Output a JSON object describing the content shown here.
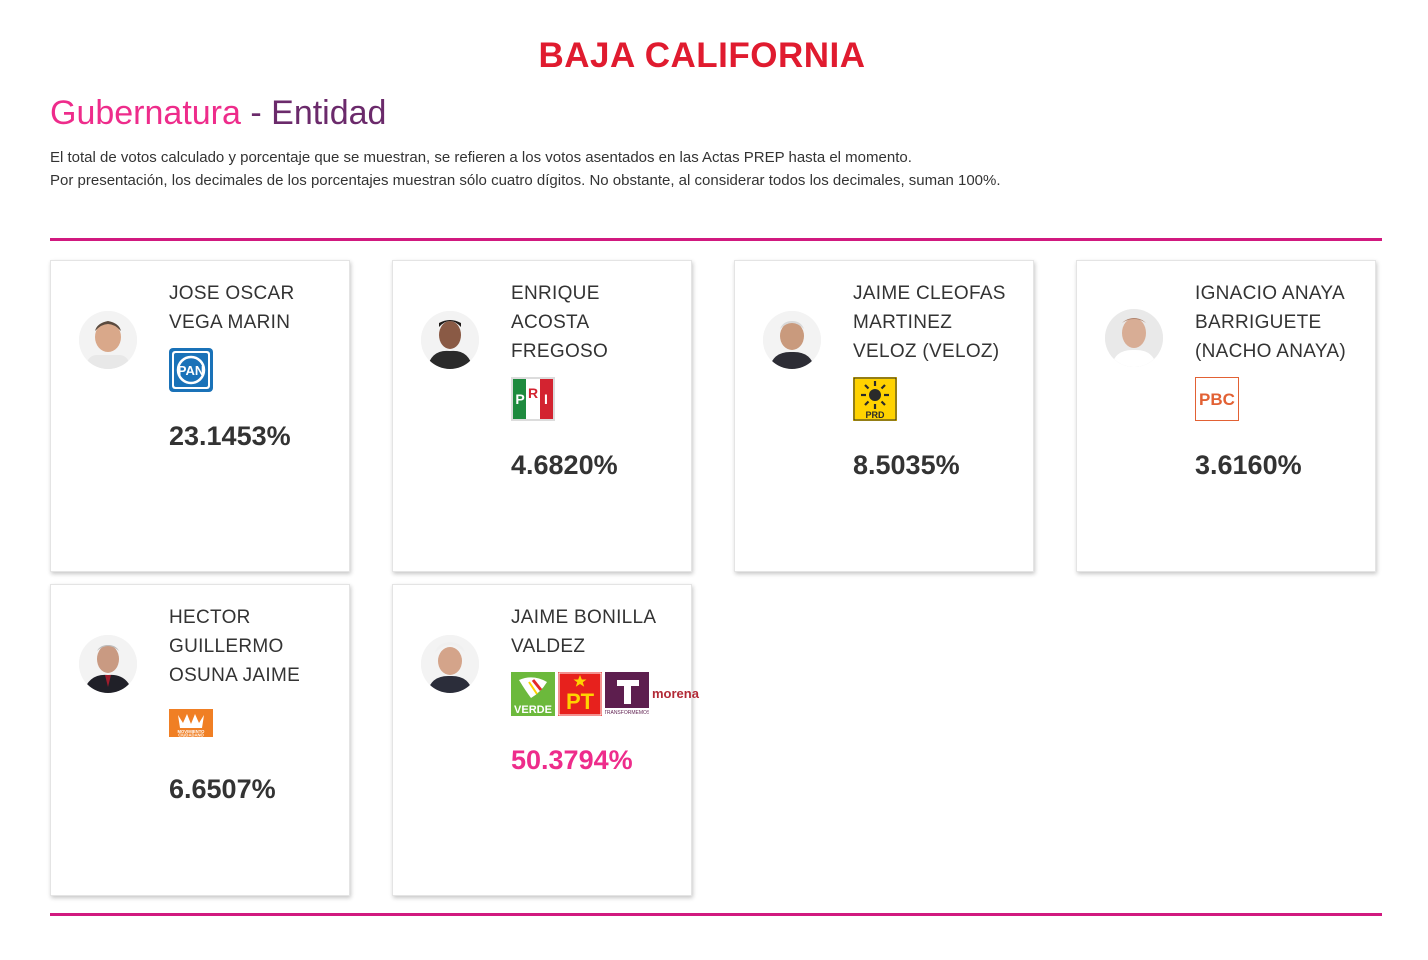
{
  "header": {
    "state": "BAJA CALIFORNIA",
    "section_primary": "Gubernatura",
    "section_sep": "-",
    "section_secondary": "Entidad",
    "note_line1": "El total de votos calculado y porcentaje que se muestran, se refieren a los votos asentados en las Actas PREP hasta el momento.",
    "note_line2": "Por presentación, los decimales de los porcentajes muestran sólo cuatro dígitos. No obstante, al considerar todos los decimales, suman 100%."
  },
  "colors": {
    "state_title": "#e01b2f",
    "primary_pink": "#ee2c8b",
    "secondary_purple": "#6b2a6b",
    "rule": "#d1197f"
  },
  "candidates": [
    {
      "name_lines": [
        "JOSE OSCAR",
        "VEGA MARIN"
      ],
      "parties": [
        "PAN"
      ],
      "percentage": "23.1453%",
      "winner": false,
      "photo": "candidate-photo"
    },
    {
      "name_lines": [
        "ENRIQUE",
        "ACOSTA",
        "FREGOSO"
      ],
      "parties": [
        "PRI"
      ],
      "percentage": "4.6820%",
      "winner": false,
      "photo": "candidate-photo"
    },
    {
      "name_lines": [
        "JAIME CLEOFAS",
        "MARTINEZ",
        "VELOZ (VELOZ)"
      ],
      "parties": [
        "PRD"
      ],
      "percentage": "8.5035%",
      "winner": false,
      "photo": "candidate-photo"
    },
    {
      "name_lines": [
        "IGNACIO ANAYA",
        "BARRIGUETE",
        "(NACHO ANAYA)"
      ],
      "parties": [
        "PBC"
      ],
      "percentage": "3.6160%",
      "winner": false,
      "photo": "candidate-photo"
    },
    {
      "name_lines": [
        "HECTOR",
        "GUILLERMO",
        "OSUNA JAIME"
      ],
      "parties": [
        "MOVIMIENTO CIUDADANO"
      ],
      "percentage": "6.6507%",
      "winner": false,
      "photo": "candidate-photo"
    },
    {
      "name_lines": [
        "JAIME BONILLA",
        "VALDEZ"
      ],
      "parties": [
        "VERDE",
        "PT",
        "TRANSFORMEMOS",
        "morena"
      ],
      "percentage": "50.3794%",
      "winner": true,
      "photo": "candidate-photo"
    }
  ]
}
